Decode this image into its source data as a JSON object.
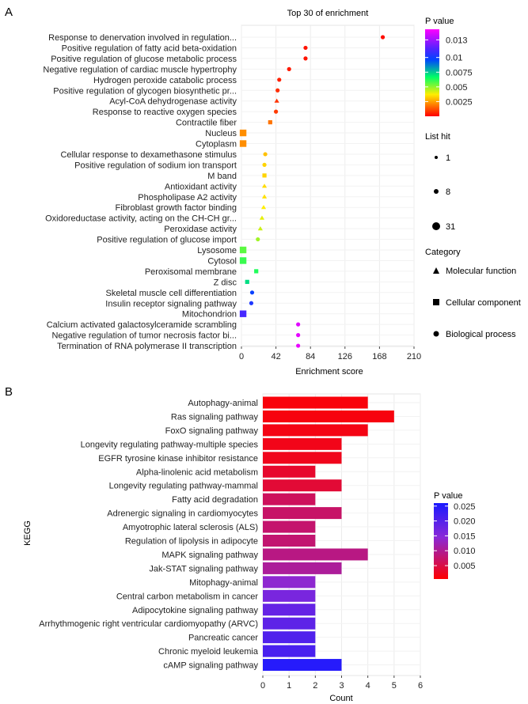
{
  "panels": {
    "a": "A",
    "b": "B"
  },
  "chart_data": [
    {
      "type": "scatter",
      "title": "Top 30 of enrichment",
      "xlabel": "Enrichment score",
      "ylabel": "",
      "xlim": [
        0,
        210
      ],
      "xticks": [
        0,
        42,
        84,
        126,
        168,
        210
      ],
      "grid": true,
      "legend_position": "right",
      "categories": [
        "Response to denervation involved in regulation...",
        "Positive regulation of fatty acid beta-oxidation",
        "Positive regulation of glucose metabolic process",
        "Negative regulation of cardiac muscle hypertrophy",
        "Hydrogen peroxide catabolic process",
        "Positive regulation of glycogen biosynthetic pr...",
        "Acyl-CoA dehydrogenase activity",
        "Response to reactive oxygen species",
        "Contractile fiber",
        "Nucleus",
        "Cytoplasm",
        "Cellular response to dexamethasone stimulus",
        "Positive regulation of sodium ion transport",
        "M band",
        "Antioxidant activity",
        "Phospholipase A2 activity",
        "Fibroblast growth factor binding",
        "Oxidoreductase activity, acting on the CH-CH gr...",
        "Peroxidase activity",
        "Positive regulation of glucose import",
        "Lysosome",
        "Cytosol",
        "Peroxisomal membrane",
        "Z disc",
        "Skeletal muscle cell differentiation",
        "Insulin receptor signaling pathway",
        "Mitochondrion",
        "Calcium activated galactosylceramide scrambling",
        "Negative regulation of tumor necrosis factor bi...",
        "Termination of RNA polymerase II transcription"
      ],
      "x": [
        172,
        78,
        78,
        58,
        46,
        44,
        43,
        42,
        35,
        2,
        2,
        29,
        28,
        28,
        28,
        28,
        27,
        25,
        23,
        20,
        2,
        2,
        18,
        7,
        13,
        12,
        2,
        69,
        69,
        69
      ],
      "pvalue": [
        0.0002,
        0.0003,
        0.0003,
        0.0004,
        0.0005,
        0.0007,
        0.0008,
        0.0009,
        0.0018,
        0.0022,
        0.0022,
        0.003,
        0.0033,
        0.0033,
        0.0034,
        0.0035,
        0.0037,
        0.004,
        0.0043,
        0.0048,
        0.0056,
        0.006,
        0.0063,
        0.0072,
        0.0098,
        0.0103,
        0.0112,
        0.0142,
        0.0143,
        0.0144
      ],
      "category": [
        "BP",
        "BP",
        "BP",
        "BP",
        "BP",
        "BP",
        "MF",
        "BP",
        "CC",
        "CC",
        "CC",
        "BP",
        "BP",
        "CC",
        "MF",
        "MF",
        "MF",
        "MF",
        "MF",
        "BP",
        "CC",
        "CC",
        "CC",
        "CC",
        "BP",
        "BP",
        "CC",
        "BP",
        "BP",
        "BP"
      ],
      "list_hit": [
        1,
        1,
        1,
        1,
        1,
        1,
        1,
        1,
        1,
        8,
        8,
        1,
        1,
        1,
        1,
        1,
        1,
        1,
        1,
        1,
        8,
        8,
        1,
        1,
        1,
        1,
        8,
        1,
        1,
        1
      ],
      "colorbar": {
        "title": "P value",
        "ticks": [
          0.013,
          0.01,
          0.0075,
          0.005,
          0.0025
        ],
        "labels": [
          "0.013",
          "0.01",
          "0.0075",
          "0.005",
          "0.0025"
        ],
        "min": 0,
        "max": 0.0148
      },
      "size_legend": {
        "title": "List hit",
        "labels": [
          "1",
          "8",
          "31"
        ]
      },
      "shape_legend": {
        "title": "Category",
        "labels": [
          "Molecular function",
          "Cellular component",
          "Biological process"
        ]
      }
    },
    {
      "type": "bar",
      "orientation": "horizontal",
      "title": "",
      "xlabel": "Count",
      "ylabel": "KEGG",
      "xlim": [
        0,
        6
      ],
      "xticks": [
        0,
        1,
        2,
        3,
        4,
        5,
        6
      ],
      "grid": true,
      "legend_position": "right",
      "categories": [
        "Autophagy-animal",
        "Ras signaling pathway",
        "FoxO signaling pathway",
        "Longevity regulating pathway-multiple species",
        "EGFR tyrosine kinase inhibitor resistance",
        "Alpha-linolenic acid metabolism",
        "Longevity regulating pathway-mammal",
        "Fatty acid degradation",
        "Adrenergic signaling in cardiomyocytes",
        "Amyotrophic lateral sclerosis (ALS)",
        "Regulation of lipolysis in adipocyte",
        "MAPK signaling pathway",
        "Jak-STAT signaling pathway",
        "Mitophagy-animal",
        "Central carbon metabolism in cancer",
        "Adipocytokine signaling pathway",
        "Arrhythmogenic right ventricular cardiomyopathy (ARVC)",
        "Pancreatic cancer",
        "Chronic myeloid leukemia",
        "cAMP signaling pathway"
      ],
      "values": [
        4,
        5,
        4,
        3,
        3,
        2,
        3,
        2,
        3,
        2,
        2,
        4,
        3,
        2,
        2,
        2,
        2,
        2,
        2,
        3
      ],
      "pvalue": [
        0.0012,
        0.0014,
        0.0018,
        0.0021,
        0.0023,
        0.0034,
        0.004,
        0.0065,
        0.0072,
        0.0076,
        0.0078,
        0.009,
        0.0105,
        0.014,
        0.0163,
        0.0183,
        0.019,
        0.0205,
        0.0212,
        0.0248
      ],
      "colorbar": {
        "title": "P value",
        "ticks": [
          0.025,
          0.02,
          0.015,
          0.01,
          0.005
        ],
        "labels": [
          "0.025",
          "0.020",
          "0.015",
          "0.010",
          "0.005"
        ],
        "min": 0.0005,
        "max": 0.026
      }
    }
  ]
}
